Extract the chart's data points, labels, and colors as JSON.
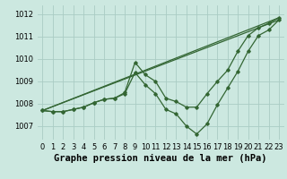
{
  "bg_color": "#cce8e0",
  "grid_color": "#aaccc4",
  "line_color": "#336633",
  "xlabel": "Graphe pression niveau de la mer (hPa)",
  "xlabel_fontsize": 7.5,
  "tick_fontsize": 6,
  "xlim": [
    -0.5,
    23.5
  ],
  "ylim": [
    1006.4,
    1012.4
  ],
  "yticks": [
    1007,
    1008,
    1009,
    1010,
    1011,
    1012
  ],
  "xticks": [
    0,
    1,
    2,
    3,
    4,
    5,
    6,
    7,
    8,
    9,
    10,
    11,
    12,
    13,
    14,
    15,
    16,
    17,
    18,
    19,
    20,
    21,
    22,
    23
  ],
  "line_zigzag1": {
    "x": [
      0,
      1,
      2,
      3,
      4,
      5,
      6,
      7,
      8,
      9,
      10,
      11,
      12,
      13,
      14,
      15,
      16,
      17,
      18,
      19,
      20,
      21,
      22,
      23
    ],
    "y": [
      1007.7,
      1007.65,
      1007.65,
      1007.75,
      1007.85,
      1008.05,
      1008.2,
      1008.25,
      1008.45,
      1009.4,
      1008.85,
      1008.45,
      1007.75,
      1007.55,
      1007.0,
      1006.65,
      1007.1,
      1007.95,
      1008.7,
      1009.45,
      1010.35,
      1011.05,
      1011.3,
      1011.75
    ]
  },
  "line_zigzag2": {
    "x": [
      0,
      1,
      2,
      3,
      4,
      5,
      6,
      7,
      8,
      9,
      10,
      11,
      12,
      13,
      14,
      15,
      16,
      17,
      18,
      19,
      20,
      21,
      22,
      23
    ],
    "y": [
      1007.7,
      1007.65,
      1007.65,
      1007.75,
      1007.85,
      1008.05,
      1008.2,
      1008.25,
      1008.5,
      1009.85,
      1009.3,
      1009.0,
      1008.25,
      1008.1,
      1007.85,
      1007.85,
      1008.45,
      1009.0,
      1009.5,
      1010.35,
      1011.05,
      1011.4,
      1011.6,
      1011.85
    ]
  },
  "line_straight1": {
    "x": [
      0,
      23
    ],
    "y": [
      1007.7,
      1011.75
    ]
  },
  "line_straight2": {
    "x": [
      0,
      23
    ],
    "y": [
      1007.7,
      1011.85
    ]
  }
}
